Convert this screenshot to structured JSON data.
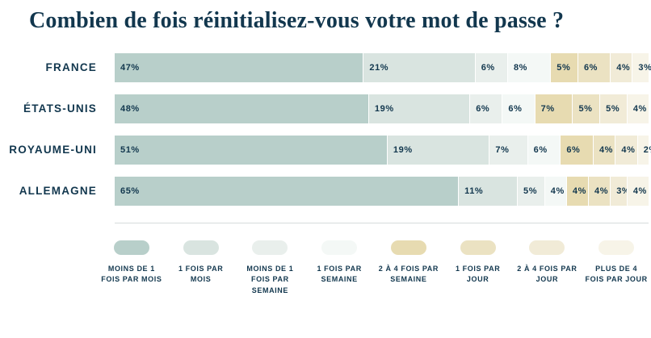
{
  "colors": {
    "text_navy": "#12374e",
    "divider": "#d6dbdc",
    "background": "#ffffff"
  },
  "chart_data": {
    "type": "bar",
    "stacked": true,
    "orientation": "horizontal",
    "title": "Combien de fois réinitialisez-vous votre mot de passe ?",
    "unit": "%",
    "legend_position": "bottom",
    "value_labels": "inside-left",
    "categories": [
      "FRANCE",
      "ÉTATS-UNIS",
      "ROYAUME-UNI",
      "ALLEMAGNE"
    ],
    "segments": [
      {
        "label": "MOINS DE 1 FOIS PAR MOIS",
        "color": "#b8cfca"
      },
      {
        "label": "1 FOIS PAR MOIS",
        "color": "#d9e4e0"
      },
      {
        "label": "MOINS DE 1 FOIS PAR SEMAINE",
        "color": "#e9efec"
      },
      {
        "label": "1 FOIS PAR SEMAINE",
        "color": "#f4f8f6"
      },
      {
        "label": "2 À 4 FOIS PAR SEMAINE",
        "color": "#e7dbb1"
      },
      {
        "label": "1 FOIS PAR JOUR",
        "color": "#ebe2c2"
      },
      {
        "label": "2 À 4 FOIS PAR JOUR",
        "color": "#f1ebd7"
      },
      {
        "label": "PLUS DE 4 FOIS PAR JOUR",
        "color": "#f7f4e8"
      }
    ],
    "series": [
      {
        "name": "FRANCE",
        "values": [
          47,
          21,
          6,
          8,
          5,
          6,
          4,
          3
        ]
      },
      {
        "name": "ÉTATS-UNIS",
        "values": [
          48,
          19,
          6,
          6,
          7,
          5,
          5,
          4
        ]
      },
      {
        "name": "ROYAUME-UNI",
        "values": [
          51,
          19,
          7,
          6,
          6,
          4,
          4,
          2
        ]
      },
      {
        "name": "ALLEMAGNE",
        "values": [
          65,
          11,
          5,
          4,
          4,
          4,
          3,
          4
        ]
      }
    ]
  }
}
